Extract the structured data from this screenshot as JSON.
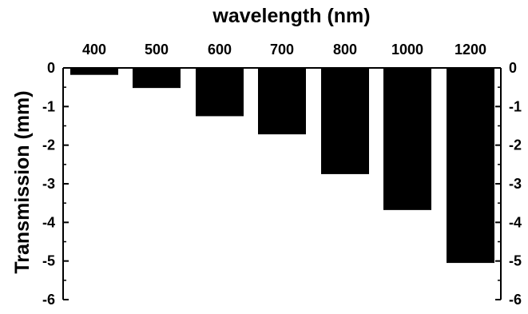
{
  "chart_data": {
    "type": "bar",
    "title": "wavelength (nm)",
    "xlabel": "",
    "ylabel": "Transmission (mm)",
    "categories": [
      "400",
      "500",
      "600",
      "700",
      "800",
      "1000",
      "1200"
    ],
    "values": [
      -0.18,
      -0.52,
      -1.25,
      -1.72,
      -2.75,
      -3.68,
      -5.05
    ],
    "ylim": [
      -6,
      0
    ],
    "yticks": [
      "0",
      "-1",
      "-2",
      "-3",
      "-4",
      "-5",
      "-6"
    ],
    "ytick_values": [
      0,
      -1,
      -2,
      -3,
      -4,
      -5,
      -6
    ],
    "category_axis_position": "top",
    "right_axis": true,
    "grid": false,
    "bar_color": "#000000"
  }
}
